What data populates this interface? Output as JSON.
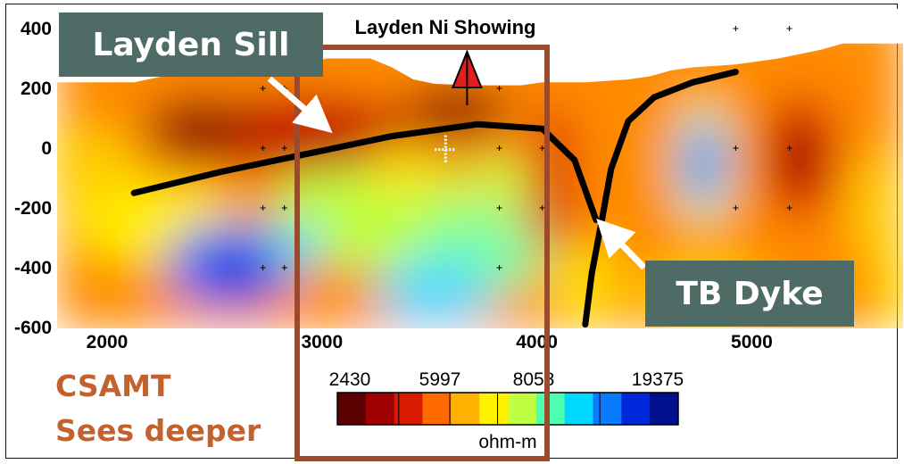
{
  "colors": {
    "callout_bg": "#4f6b66",
    "callout_text": "#ffffff",
    "csamt_text": "#c4622d",
    "highlight_box": "#9c4a2e",
    "trace": "#000000",
    "arrow": "#ffffff",
    "marker": "#e02020"
  },
  "chart_data": {
    "type": "heatmap",
    "title": "Layden Ni Showing",
    "xlabel": "",
    "ylabel": "",
    "xlim": [
      1800,
      5800
    ],
    "ylim": [
      -600,
      400
    ],
    "x_ticks": [
      "2000",
      "3000",
      "4000",
      "5000"
    ],
    "y_ticks": [
      "400",
      "200",
      "0",
      "-200",
      "-400",
      "-600"
    ],
    "colorbar": {
      "unit": "ohm-m",
      "labels": [
        "2430",
        "5997",
        "8058",
        "19375"
      ],
      "colors": [
        "#5a0000",
        "#9e0000",
        "#d81a00",
        "#ff6a00",
        "#ffb300",
        "#fff200",
        "#bfff3f",
        "#4fffb0",
        "#00d9ff",
        "#0a7bff",
        "#0026d9",
        "#00108c"
      ]
    },
    "surface_profile": {
      "x": [
        1800,
        2200,
        2400,
        2600,
        2800,
        3000,
        3100,
        3300,
        3400,
        3500,
        3600,
        3800,
        4000,
        4100,
        4300,
        4500,
        4600,
        4700,
        4800,
        5000,
        5200,
        5400,
        5500,
        5600,
        5700,
        5800
      ],
      "y": [
        220,
        220,
        250,
        275,
        280,
        285,
        300,
        300,
        270,
        230,
        215,
        210,
        210,
        220,
        220,
        230,
        240,
        260,
        270,
        280,
        300,
        330,
        350,
        350,
        350,
        350
      ]
    },
    "series": [
      {
        "name": "Layden Sill",
        "x": [
          2200,
          2600,
          3000,
          3400,
          3800,
          4100,
          4250,
          4350
        ],
        "y": [
          -150,
          -80,
          -20,
          40,
          80,
          65,
          -40,
          -240
        ]
      },
      {
        "name": "TB Dyke",
        "x": [
          4300,
          4330,
          4380,
          4420,
          4500,
          4620,
          4800,
          5000
        ],
        "y": [
          -590,
          -420,
          -230,
          -70,
          90,
          170,
          220,
          255
        ]
      }
    ],
    "annotations": {
      "showing_marker": {
        "x": 3750,
        "y": 300
      },
      "stations": [
        [
          2800,
          200
        ],
        [
          2900,
          200
        ],
        [
          3900,
          200
        ],
        [
          2800,
          0
        ],
        [
          2900,
          0
        ],
        [
          3900,
          0
        ],
        [
          4100,
          0
        ],
        [
          2800,
          -200
        ],
        [
          2900,
          -200
        ],
        [
          3900,
          -200
        ],
        [
          4100,
          -200
        ],
        [
          2800,
          -400
        ],
        [
          2900,
          -400
        ],
        [
          3900,
          -400
        ],
        [
          5000,
          400
        ],
        [
          5250,
          400
        ],
        [
          5000,
          0
        ],
        [
          5250,
          0
        ],
        [
          5000,
          -200
        ],
        [
          5250,
          -200
        ]
      ],
      "cross": {
        "x": 3650,
        "y": -5
      },
      "highlight_range": [
        2950,
        4100
      ]
    }
  },
  "callouts": {
    "sill": "Layden Sill",
    "dyke": "TB Dyke"
  },
  "notes": {
    "line1": "CSAMT",
    "line2": "Sees deeper"
  }
}
